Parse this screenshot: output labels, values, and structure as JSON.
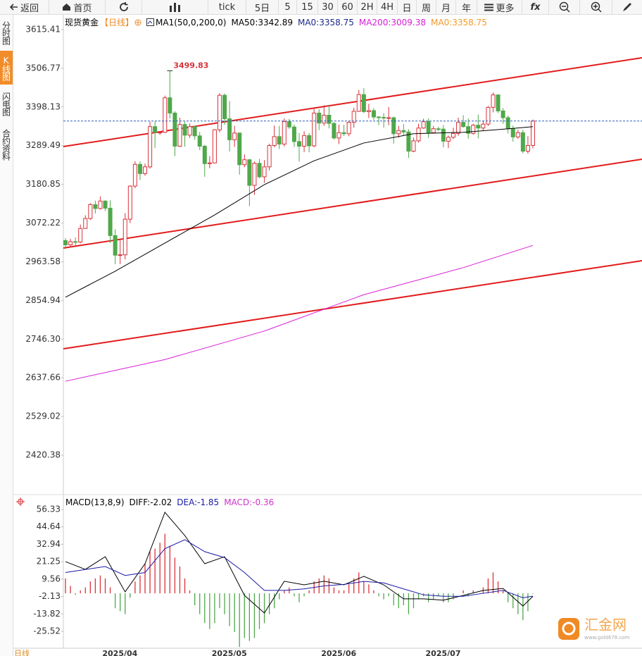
{
  "toolbar": {
    "back": "返回",
    "home": "首页",
    "periods": [
      "tick",
      "5日",
      "5",
      "15",
      "30",
      "60",
      "2H",
      "4H",
      "日",
      "周",
      "月",
      "年"
    ],
    "more": "更多",
    "fx": "fx"
  },
  "sidebar": [
    "分时图",
    "K线图",
    "闪电图",
    "合约资料"
  ],
  "watermark": {
    "name": "汇金网",
    "url": "www.gold678.com"
  },
  "chart_data": {
    "type": "candlestick",
    "header": {
      "name": "现货黄金",
      "period": "【日线】",
      "study": "MA1(50,0,200,0)"
    },
    "period_label": "日线",
    "up_color": "#d8333a",
    "down_color": "#4fa84a",
    "categories": [
      null,
      null,
      null,
      null,
      null,
      null,
      "2025/04",
      null,
      null,
      null,
      null,
      null,
      null,
      null,
      null,
      null,
      null,
      null,
      null,
      null,
      null,
      null,
      null,
      null,
      null,
      null,
      null,
      null,
      "2025/05",
      null,
      null,
      null,
      null,
      null,
      null,
      null,
      null,
      null,
      null,
      null,
      null,
      null,
      null,
      null,
      null,
      null,
      null,
      null,
      null,
      null,
      "2025/06",
      null,
      null,
      null,
      null,
      null,
      null,
      null,
      null,
      null,
      null,
      null,
      null,
      null,
      null,
      null,
      null,
      null,
      null,
      null,
      null,
      "2025/07",
      null,
      null,
      null,
      null,
      null,
      null,
      null,
      null,
      null,
      null,
      null,
      null,
      null,
      null,
      null,
      null,
      null,
      null,
      null,
      null,
      null,
      null,
      null
    ],
    "open": [
      3023,
      3011,
      3020,
      3019,
      3057,
      3085,
      3124,
      3113,
      3134,
      3114,
      3037,
      2982,
      2983,
      3083,
      3176,
      3237,
      3211,
      3230,
      3343,
      3327,
      3327,
      3424,
      3381,
      3288,
      3349,
      3319,
      3343,
      3317,
      3288,
      3239,
      3241,
      3334,
      3431,
      3365,
      3306,
      3325,
      3236,
      3250,
      3178,
      3240,
      3202,
      3230,
      3290,
      3315,
      3294,
      3357,
      3342,
      3301,
      3288,
      3318,
      3289,
      3381,
      3353,
      3375,
      3352,
      3311,
      3326,
      3323,
      3355,
      3386,
      3433,
      3385,
      3388,
      3370,
      3369,
      3368,
      3368,
      3323,
      3332,
      3328,
      3274,
      3303,
      3339,
      3357,
      3326,
      3337,
      3336,
      3302,
      3313,
      3324,
      3355,
      3343,
      3324,
      3347,
      3339,
      3350,
      3397,
      3432,
      3387,
      3368,
      3337,
      3314,
      3326,
      3274,
      3290
    ],
    "high": [
      3030,
      3028,
      3032,
      3068,
      3094,
      3128,
      3135,
      3147,
      3136,
      3136,
      3055,
      3024,
      3100,
      3178,
      3246,
      3245,
      3239,
      3357,
      3358,
      3330,
      3430,
      3499.83,
      3386,
      3368,
      3357,
      3352,
      3345,
      3328,
      3292,
      3260,
      3336,
      3437,
      3436,
      3415,
      3345,
      3326,
      3265,
      3252,
      3245,
      3252,
      3249,
      3295,
      3346,
      3345,
      3366,
      3365,
      3349,
      3325,
      3330,
      3325,
      3393,
      3392,
      3403,
      3404,
      3356,
      3349,
      3348,
      3360,
      3396,
      3446,
      3451,
      3407,
      3395,
      3372,
      3381,
      3398,
      3371,
      3345,
      3350,
      3336,
      3312,
      3351,
      3365,
      3366,
      3345,
      3343,
      3347,
      3318,
      3340,
      3368,
      3375,
      3366,
      3351,
      3377,
      3360,
      3401,
      3439,
      3434,
      3395,
      3374,
      3346,
      3334,
      3334,
      3316,
      3363
    ],
    "low": [
      3000,
      3004,
      3009,
      3015,
      3056,
      3081,
      3099,
      3110,
      3106,
      3016,
      2957,
      2957,
      2970,
      3072,
      3170,
      3193,
      3205,
      3225,
      3283,
      3320,
      3325,
      3366,
      3260,
      3286,
      3287,
      3311,
      3306,
      3277,
      3202,
      3226,
      3240,
      3327,
      3348,
      3273,
      3286,
      3208,
      3229,
      3120,
      3151,
      3198,
      3185,
      3220,
      3285,
      3280,
      3287,
      3336,
      3286,
      3245,
      3271,
      3271,
      3285,
      3333,
      3345,
      3338,
      3307,
      3294,
      3317,
      3316,
      3340,
      3384,
      3381,
      3367,
      3362,
      3347,
      3340,
      3347,
      3295,
      3312,
      3318,
      3255,
      3271,
      3298,
      3337,
      3311,
      3325,
      3330,
      3285,
      3283,
      3308,
      3317,
      3340,
      3309,
      3320,
      3310,
      3331,
      3345,
      3383,
      3381,
      3351,
      3324,
      3301,
      3309,
      3268,
      3267,
      3282
    ],
    "close": [
      3011,
      3020,
      3019,
      3057,
      3085,
      3124,
      3113,
      3134,
      3114,
      3037,
      2982,
      2983,
      3083,
      3176,
      3237,
      3211,
      3230,
      3343,
      3327,
      3327,
      3424,
      3381,
      3288,
      3349,
      3319,
      3343,
      3317,
      3288,
      3239,
      3241,
      3334,
      3431,
      3365,
      3306,
      3325,
      3236,
      3250,
      3178,
      3240,
      3202,
      3230,
      3290,
      3315,
      3294,
      3357,
      3342,
      3301,
      3288,
      3318,
      3289,
      3381,
      3353,
      3375,
      3352,
      3311,
      3326,
      3323,
      3355,
      3386,
      3433,
      3385,
      3388,
      3370,
      3369,
      3368,
      3368,
      3323,
      3332,
      3328,
      3274,
      3303,
      3339,
      3357,
      3326,
      3337,
      3336,
      3302,
      3313,
      3324,
      3355,
      3343,
      3324,
      3347,
      3339,
      3350,
      3397,
      3432,
      3387,
      3368,
      3337,
      3314,
      3326,
      3274,
      3290,
      3358.75
    ],
    "ylim": [
      2313.53,
      3658.94
    ],
    "yticks": [
      3615.41,
      3506.77,
      3398.13,
      3289.49,
      3180.85,
      3072.22,
      2963.58,
      2854.94,
      {
        "value": 2746.3,
        "label": "2746.30"
      },
      2637.66,
      2529.02,
      2420.38
    ],
    "legend": [
      {
        "label": "MA50:3342.89",
        "color": "#000000",
        "x": [
          0,
          10,
          20,
          30,
          40,
          50,
          60,
          70,
          80,
          90,
          94
        ],
        "values": [
          2864,
          2937,
          3016,
          3095,
          3180,
          3247,
          3297,
          3323,
          3327,
          3338,
          3342.89
        ]
      },
      {
        "label": "MA0:3358.75",
        "color": "#1c2a8a"
      },
      {
        "label": "MA200:3009.38",
        "color": "#d81ed8",
        "x": [
          0,
          20,
          40,
          60,
          80,
          94
        ],
        "values": [
          2628,
          2689,
          2769,
          2871,
          2947,
          3009.38
        ]
      },
      {
        "label": "MA0:3358.75",
        "color": "#f39a2b"
      }
    ],
    "macd": {
      "title": "MACD(13,8,9)",
      "ylim": [
        -35.93,
        64.85
      ],
      "yticks": [
        56.33,
        44.64,
        32.94,
        21.25,
        9.56,
        -2.13,
        -13.82,
        -25.52
      ],
      "up_color": "#d8333a",
      "down_color": "#4fa84a",
      "histogram": [
        10,
        5,
        -1,
        2,
        4,
        8,
        10,
        12,
        10,
        4,
        -10,
        -12,
        -14,
        -3,
        8,
        12,
        20,
        28,
        30,
        34,
        40,
        32,
        24,
        18,
        10,
        2,
        -8,
        -14,
        -20,
        -24,
        -20,
        -10,
        -14,
        -22,
        -26,
        -36,
        -30,
        -32,
        -30,
        -24,
        -20,
        -14,
        -10,
        -4,
        2,
        4,
        -2,
        -6,
        -2,
        2,
        8,
        10,
        12,
        10,
        4,
        2,
        2,
        6,
        10,
        14,
        8,
        6,
        2,
        -2,
        -4,
        -2,
        -8,
        -10,
        -8,
        -14,
        -10,
        -4,
        -2,
        -6,
        -4,
        -2,
        -6,
        -6,
        -4,
        0,
        2,
        -2,
        2,
        0,
        4,
        10,
        14,
        8,
        2,
        -6,
        -10,
        -14,
        -18,
        -12,
        -0.36
      ],
      "lines": [
        {
          "label": "DIFF:-2.02",
          "color": "#000000",
          "x": [
            0,
            4,
            8,
            12,
            16,
            20,
            24,
            28,
            32,
            36,
            40,
            44,
            48,
            52,
            56,
            60,
            64,
            68,
            72,
            76,
            80,
            84,
            88,
            92,
            94
          ],
          "values": [
            21.3,
            16.1,
            24.6,
            1,
            19.9,
            54.4,
            38.8,
            19.9,
            24.6,
            -1.4,
            -13.2,
            8.1,
            5.7,
            8.1,
            5.7,
            11.4,
            5.7,
            -3.7,
            -3.7,
            -4.6,
            -1.4,
            1.9,
            3.3,
            -8.5,
            -2.02
          ]
        },
        {
          "label": "DEA:-1.85",
          "color": "#1a1aa6",
          "x": [
            0,
            4,
            8,
            12,
            16,
            20,
            24,
            28,
            32,
            36,
            40,
            44,
            48,
            52,
            56,
            60,
            64,
            68,
            72,
            76,
            80,
            84,
            88,
            92,
            94
          ],
          "values": [
            14,
            16,
            18,
            12,
            14,
            30,
            36,
            28,
            24,
            14,
            2,
            2,
            3,
            5,
            6,
            8,
            7,
            3,
            -1,
            -2,
            -2,
            0,
            2,
            -3,
            -1.85
          ]
        }
      ],
      "hist_label": "MACD:-0.36",
      "hist_label_color": "#cc33cc"
    }
  }
}
